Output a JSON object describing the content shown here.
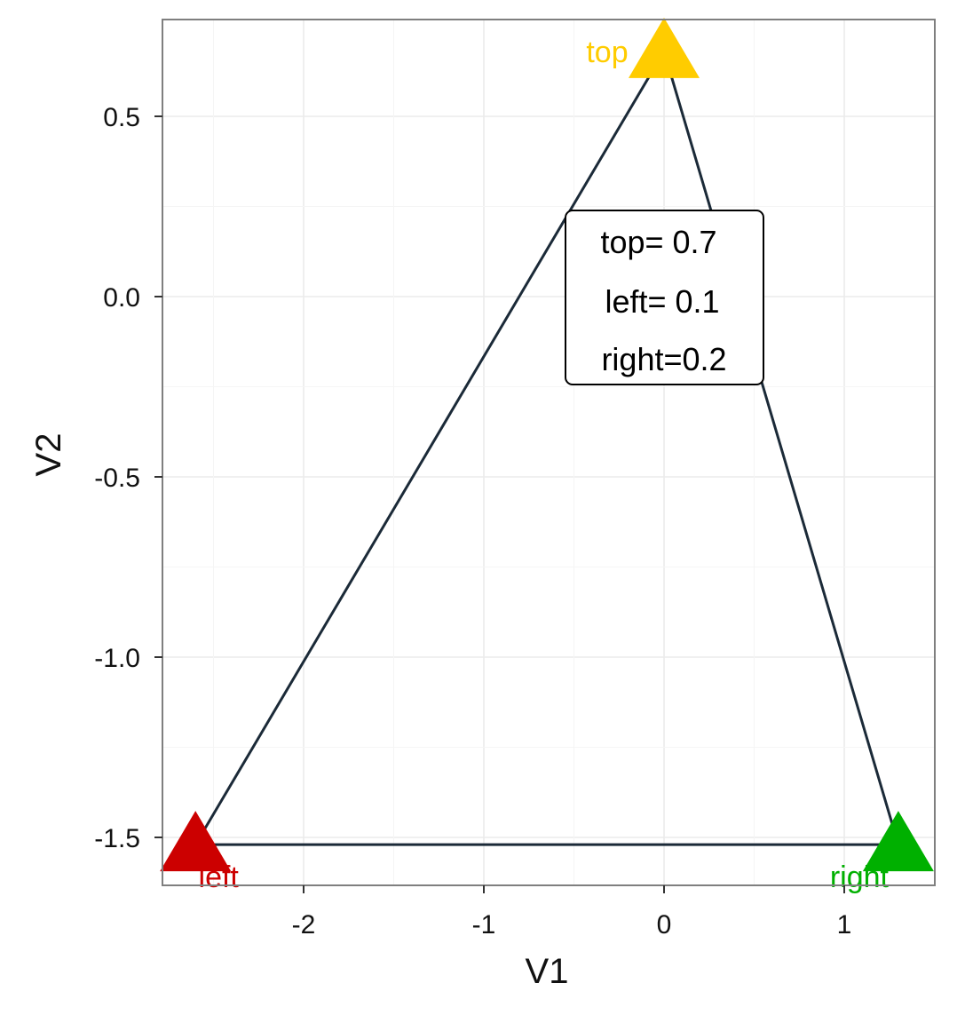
{
  "chart_data": {
    "type": "scatter",
    "xlabel": "V1",
    "ylabel": "V2",
    "xlim": [
      -2.6,
      1.5
    ],
    "ylim": [
      -1.64,
      0.75
    ],
    "x_ticks": [
      -2,
      -1,
      0,
      1
    ],
    "x_tick_labels": [
      "-2",
      "-1",
      "0",
      "1"
    ],
    "y_ticks": [
      0.5,
      0.0,
      -0.5,
      -1.0,
      -1.5
    ],
    "y_tick_labels": [
      "0.5",
      "0.0",
      "-0.5",
      "-1.0",
      "-1.5"
    ],
    "grid": true,
    "colors": {
      "top": "#FFCC00",
      "left": "#CC0000",
      "right": "#00B000",
      "edge": "#1B2A38",
      "panel_border": "#7F7F7F",
      "grid": "#EBEBEB"
    },
    "points": [
      {
        "name": "top",
        "label": "top",
        "x": 0.0,
        "y": 0.68,
        "color": "#FFCC00"
      },
      {
        "name": "left",
        "label": "left",
        "x": -2.6,
        "y": -1.52,
        "color": "#CC0000"
      },
      {
        "name": "right",
        "label": "right",
        "x": 1.3,
        "y": -1.52,
        "color": "#00B000"
      }
    ],
    "edges": [
      {
        "from": "top",
        "to": "left",
        "from_xy": [
          0.0,
          0.68
        ],
        "to_xy": [
          -2.6,
          -1.52
        ]
      },
      {
        "from": "top",
        "to": "right",
        "from_xy": [
          0.0,
          0.68
        ],
        "to_xy": [
          1.3,
          -1.52
        ]
      },
      {
        "from": "left",
        "to": "right",
        "from_xy": [
          -2.6,
          -1.52
        ],
        "to_xy": [
          1.3,
          -1.52
        ]
      }
    ],
    "annotation": {
      "lines": [
        "top= 0.7",
        "left= 0.1",
        "right=0.2"
      ],
      "x": 0.0,
      "y": 0.04
    }
  }
}
